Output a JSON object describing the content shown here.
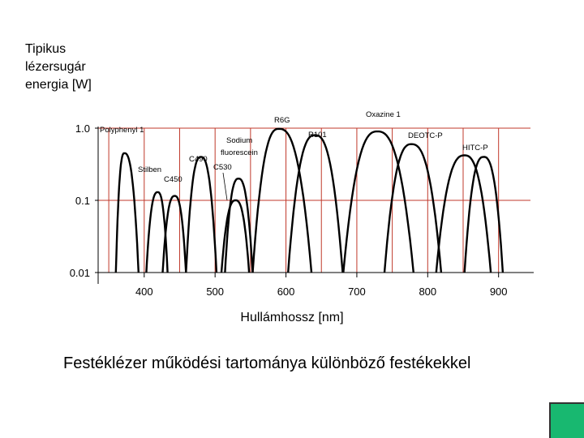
{
  "chart_data": {
    "type": "line",
    "title": "Festéklézer működési tartománya különböző festékekkel",
    "ylabel_lines": [
      "Tipikus",
      "lézersugár",
      "energia [W]"
    ],
    "xlabel": "Hullámhossz [nm]",
    "x_ticks": [
      "400",
      "500",
      "600",
      "700",
      "800",
      "900"
    ],
    "x_tick_values": [
      400,
      500,
      600,
      700,
      800,
      900
    ],
    "y_ticks": [
      "1.0",
      "0.1",
      "0.01"
    ],
    "y_tick_values": [
      1.0,
      0.1,
      0.01
    ],
    "y_scale": "log",
    "xlim": [
      335,
      945
    ],
    "ylim": [
      0.01,
      1.0
    ],
    "grid": true,
    "grid_color": "#c0392b",
    "line_color": "#000000",
    "series": [
      {
        "name": "Polyphenyl 1",
        "start": 360,
        "peak": 372,
        "end": 392,
        "peak_value": 0.45
      },
      {
        "name": "Stilben",
        "start": 403,
        "peak": 419,
        "end": 433,
        "peak_value": 0.13
      },
      {
        "name": "C450",
        "start": 426,
        "peak": 443,
        "end": 459,
        "peak_value": 0.115
      },
      {
        "name": "C490",
        "start": 459,
        "peak": 480,
        "end": 502,
        "peak_value": 0.4
      },
      {
        "name": "C530",
        "start": 509,
        "peak": 529,
        "end": 548,
        "peak_value": 0.1
      },
      {
        "name": "Sodium fluorescein",
        "start": 514,
        "peak": 533,
        "end": 553,
        "peak_value": 0.2
      },
      {
        "name": "R6G",
        "start": 553,
        "peak": 590,
        "end": 636,
        "peak_value": 0.98
      },
      {
        "name": "R101",
        "start": 603,
        "peak": 641,
        "end": 680,
        "peak_value": 0.8
      },
      {
        "name": "Oxazine 1",
        "start": 681,
        "peak": 729,
        "end": 780,
        "peak_value": 0.9
      },
      {
        "name": "DEOTC-P",
        "start": 739,
        "peak": 777,
        "end": 819,
        "peak_value": 0.6
      },
      {
        "name": "HITC-P",
        "start": 812,
        "peak": 852,
        "end": 889,
        "peak_value": 0.42
      },
      {
        "name": "",
        "start": 852,
        "peak": 879,
        "end": 906,
        "peak_value": 0.4
      }
    ],
    "annotations": [
      {
        "text": "Polyphenyl 1",
        "series": "Polyphenyl 1"
      },
      {
        "text": "Stilben",
        "series": "Stilben"
      },
      {
        "text": "C450",
        "series": "C450"
      },
      {
        "text": "C490",
        "series": "C490"
      },
      {
        "text": "C530",
        "series": "C530"
      },
      {
        "text": "Sodium",
        "series": "Sodium fluorescein"
      },
      {
        "text": "fluorescein",
        "series": "Sodium fluorescein"
      },
      {
        "text": "R6G",
        "series": "R6G"
      },
      {
        "text": "R101",
        "series": "R101"
      },
      {
        "text": "Oxazine 1",
        "series": "Oxazine 1"
      },
      {
        "text": "DEOTC-P",
        "series": "DEOTC-P"
      },
      {
        "text": "HITC-P",
        "series": "HITC-P"
      }
    ]
  },
  "colors": {
    "accent_box": "#18b870"
  }
}
